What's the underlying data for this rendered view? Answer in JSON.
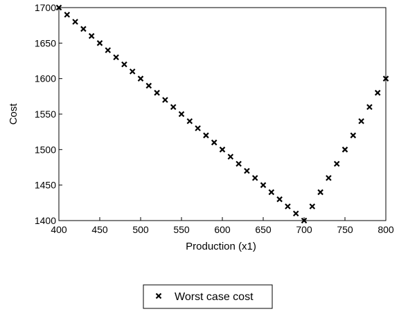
{
  "chart_data": {
    "type": "scatter",
    "xlabel": "Production (x1)",
    "ylabel": "Cost",
    "xlim": [
      400,
      800
    ],
    "ylim": [
      1400,
      1700
    ],
    "xticks": [
      400,
      450,
      500,
      550,
      600,
      650,
      700,
      750,
      800
    ],
    "yticks": [
      1400,
      1450,
      1500,
      1550,
      1600,
      1650,
      1700
    ],
    "grid": false,
    "legend_position": "bottom-center",
    "marker": "x",
    "series": [
      {
        "name": "Worst case cost",
        "color": "#000000",
        "x": [
          400,
          410,
          420,
          430,
          440,
          450,
          460,
          470,
          480,
          490,
          500,
          510,
          520,
          530,
          540,
          550,
          560,
          570,
          580,
          590,
          600,
          610,
          620,
          630,
          640,
          650,
          660,
          670,
          680,
          690,
          700,
          710,
          720,
          730,
          740,
          750,
          760,
          770,
          780,
          790,
          800
        ],
        "y": [
          1700,
          1690,
          1680,
          1670,
          1660,
          1650,
          1640,
          1630,
          1620,
          1610,
          1600,
          1590,
          1580,
          1570,
          1560,
          1550,
          1540,
          1530,
          1520,
          1510,
          1500,
          1490,
          1480,
          1470,
          1460,
          1450,
          1440,
          1430,
          1420,
          1410,
          1400,
          1420,
          1440,
          1460,
          1480,
          1500,
          1520,
          1540,
          1560,
          1580,
          1600
        ]
      }
    ]
  }
}
